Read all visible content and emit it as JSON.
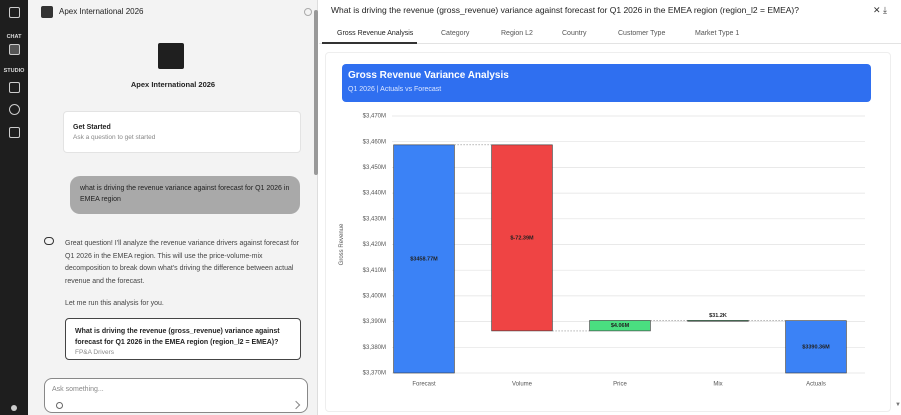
{
  "sidebar": {
    "items": [
      "CHAT",
      "STUDIO"
    ]
  },
  "chat": {
    "header": "Apex International 2026",
    "brand": "Apex International 2026",
    "get_started": {
      "title": "Get Started",
      "subtitle": "Ask a question to get started"
    },
    "user_message": "what is driving the revenue variance against forecast for Q1 2026 in EMEA region",
    "assistant_paragraphs": [
      "Great question! I'll analyze the revenue variance drivers against forecast for Q1 2026 in the EMEA region. This will use the price-volume-mix decomposition to break down what's driving the difference between actual revenue and the forecast.",
      "Let me run this analysis for you."
    ],
    "card": {
      "title": "What is driving the revenue (gross_revenue) variance against forecast for Q1 2026 in the EMEA region (region_l2 = EMEA)?",
      "subtitle": "FP&A Drivers"
    },
    "input_placeholder": "Ask something..."
  },
  "question": "What is driving the revenue (gross_revenue) variance against forecast for Q1 2026 in the EMEA region (region_l2 = EMEA)?",
  "tabs": [
    "Gross Revenue Analysis",
    "Category",
    "Region L2",
    "Country",
    "Customer Type",
    "Market Type 1"
  ],
  "chart_data": {
    "type": "waterfall",
    "title": "Gross Revenue Variance Analysis",
    "subtitle": "Q1 2026 | Actuals vs Forecast",
    "y_label": "Gross Revenue",
    "categories": [
      "Forecast",
      "Volume",
      "Price",
      "Mix",
      "Actuals"
    ],
    "measure": [
      "absolute",
      "relative",
      "relative",
      "relative",
      "absolute"
    ],
    "values": [
      3458.77,
      -72.39,
      4.06,
      0.0312,
      3390.36
    ],
    "value_labels": [
      "$3458.77M",
      "$-72.39M",
      "$4.06M",
      "$31.2K",
      "$3390.36M"
    ],
    "colors": {
      "total": "#3b82f6",
      "increase": "#4ade80",
      "decrease": "#ef4444"
    },
    "ylim": [
      3370,
      3470
    ],
    "yticks": [
      {
        "value": 3370,
        "label": "$3,370M"
      },
      {
        "value": 3380,
        "label": "$3,380M"
      },
      {
        "value": 3390,
        "label": "$3,390M"
      },
      {
        "value": 3400,
        "label": "$3,400M"
      },
      {
        "value": 3410,
        "label": "$3,410M"
      },
      {
        "value": 3420,
        "label": "$3,420M"
      },
      {
        "value": 3430,
        "label": "$3,430M"
      },
      {
        "value": 3440,
        "label": "$3,440M"
      },
      {
        "value": 3450,
        "label": "$3,450M"
      },
      {
        "value": 3460,
        "label": "$3,460M"
      },
      {
        "value": 3470,
        "label": "$3,470M"
      }
    ],
    "grid": true
  }
}
